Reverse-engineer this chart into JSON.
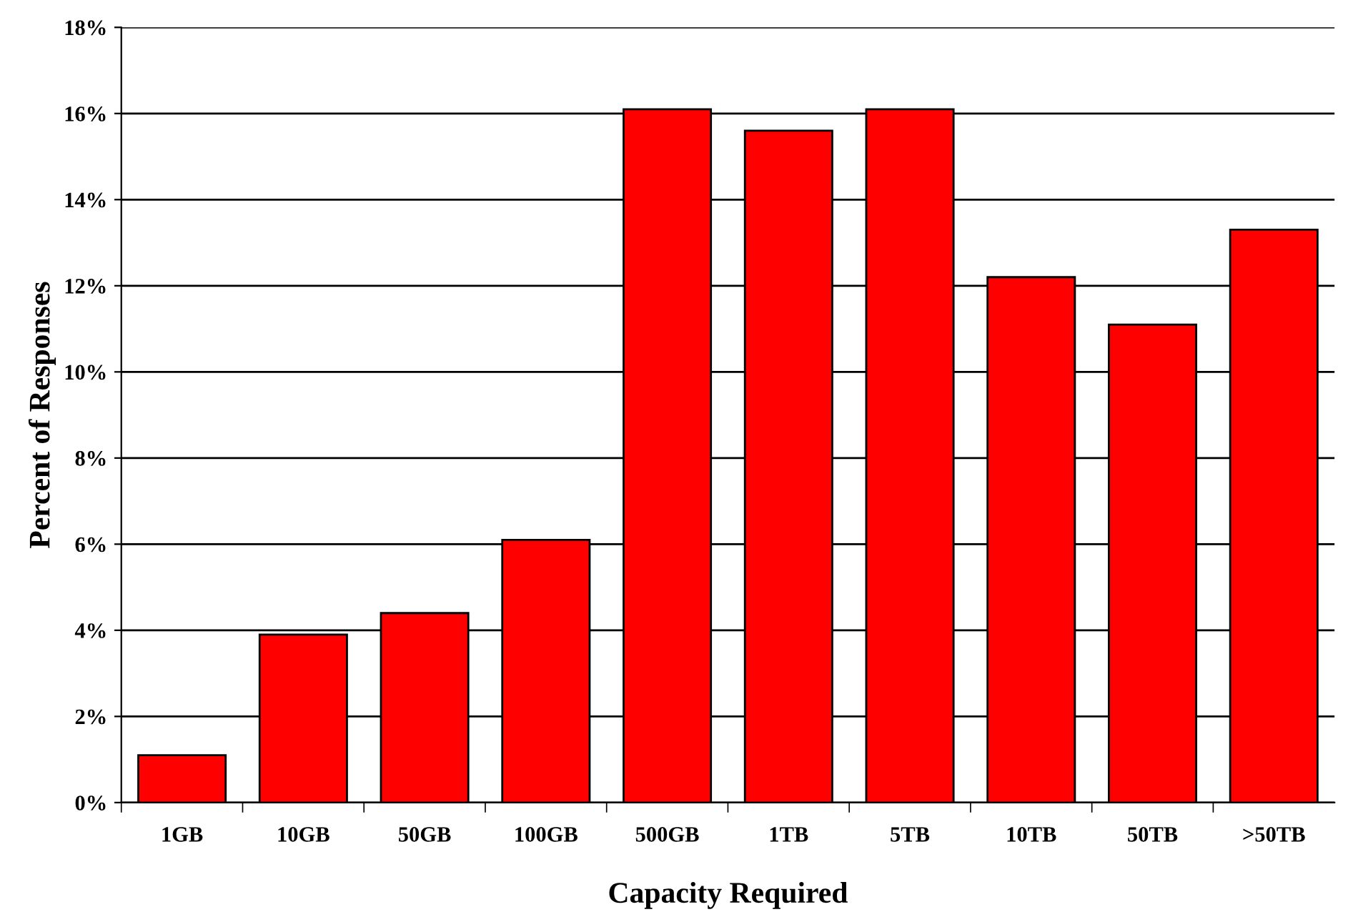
{
  "chart_data": {
    "type": "bar",
    "xlabel": "Capacity Required",
    "ylabel": "Percent of Responses",
    "categories": [
      "1GB",
      "10GB",
      "50GB",
      "100GB",
      "500GB",
      "1TB",
      "5TB",
      "10TB",
      "50TB",
      ">50TB"
    ],
    "values": [
      1.1,
      3.9,
      4.4,
      6.1,
      16.1,
      15.6,
      16.1,
      12.2,
      11.1,
      13.3
    ],
    "color": "#ff0000",
    "ylim": [
      0,
      18
    ],
    "yticks": [
      {
        "value": 0,
        "label": "0%"
      },
      {
        "value": 2,
        "label": "2%"
      },
      {
        "value": 4,
        "label": "4%"
      },
      {
        "value": 6,
        "label": "6%"
      },
      {
        "value": 8,
        "label": "8%"
      },
      {
        "value": 10,
        "label": "10%"
      },
      {
        "value": 12,
        "label": "12%"
      },
      {
        "value": 14,
        "label": "14%"
      },
      {
        "value": 16,
        "label": "16%"
      },
      {
        "value": 18,
        "label": "18%"
      }
    ],
    "grid": "y",
    "legend": false
  }
}
